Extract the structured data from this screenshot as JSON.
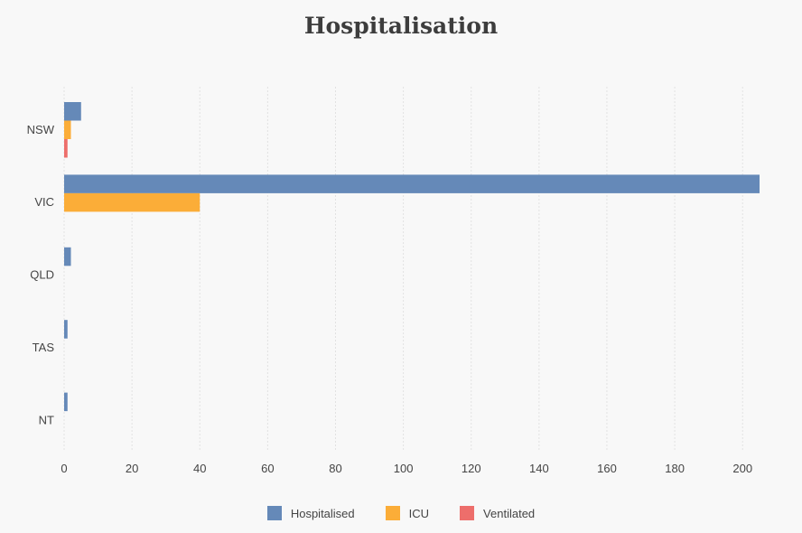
{
  "chart_data": {
    "type": "bar",
    "orientation": "horizontal",
    "title": "Hospitalisation",
    "categories": [
      "NSW",
      "VIC",
      "QLD",
      "TAS",
      "NT"
    ],
    "series": [
      {
        "name": "Hospitalised",
        "color": "#6589b8",
        "values": [
          5,
          205,
          2,
          1,
          1
        ]
      },
      {
        "name": "ICU",
        "color": "#fbad38",
        "values": [
          2,
          40,
          0,
          0,
          0
        ]
      },
      {
        "name": "Ventilated",
        "color": "#ed6e6b",
        "values": [
          1,
          0,
          0,
          0,
          0
        ]
      }
    ],
    "xlim": [
      0,
      205
    ],
    "xticks": [
      0,
      20,
      40,
      60,
      80,
      100,
      120,
      140,
      160,
      180,
      200
    ],
    "grid": true,
    "legend_position": "bottom"
  }
}
